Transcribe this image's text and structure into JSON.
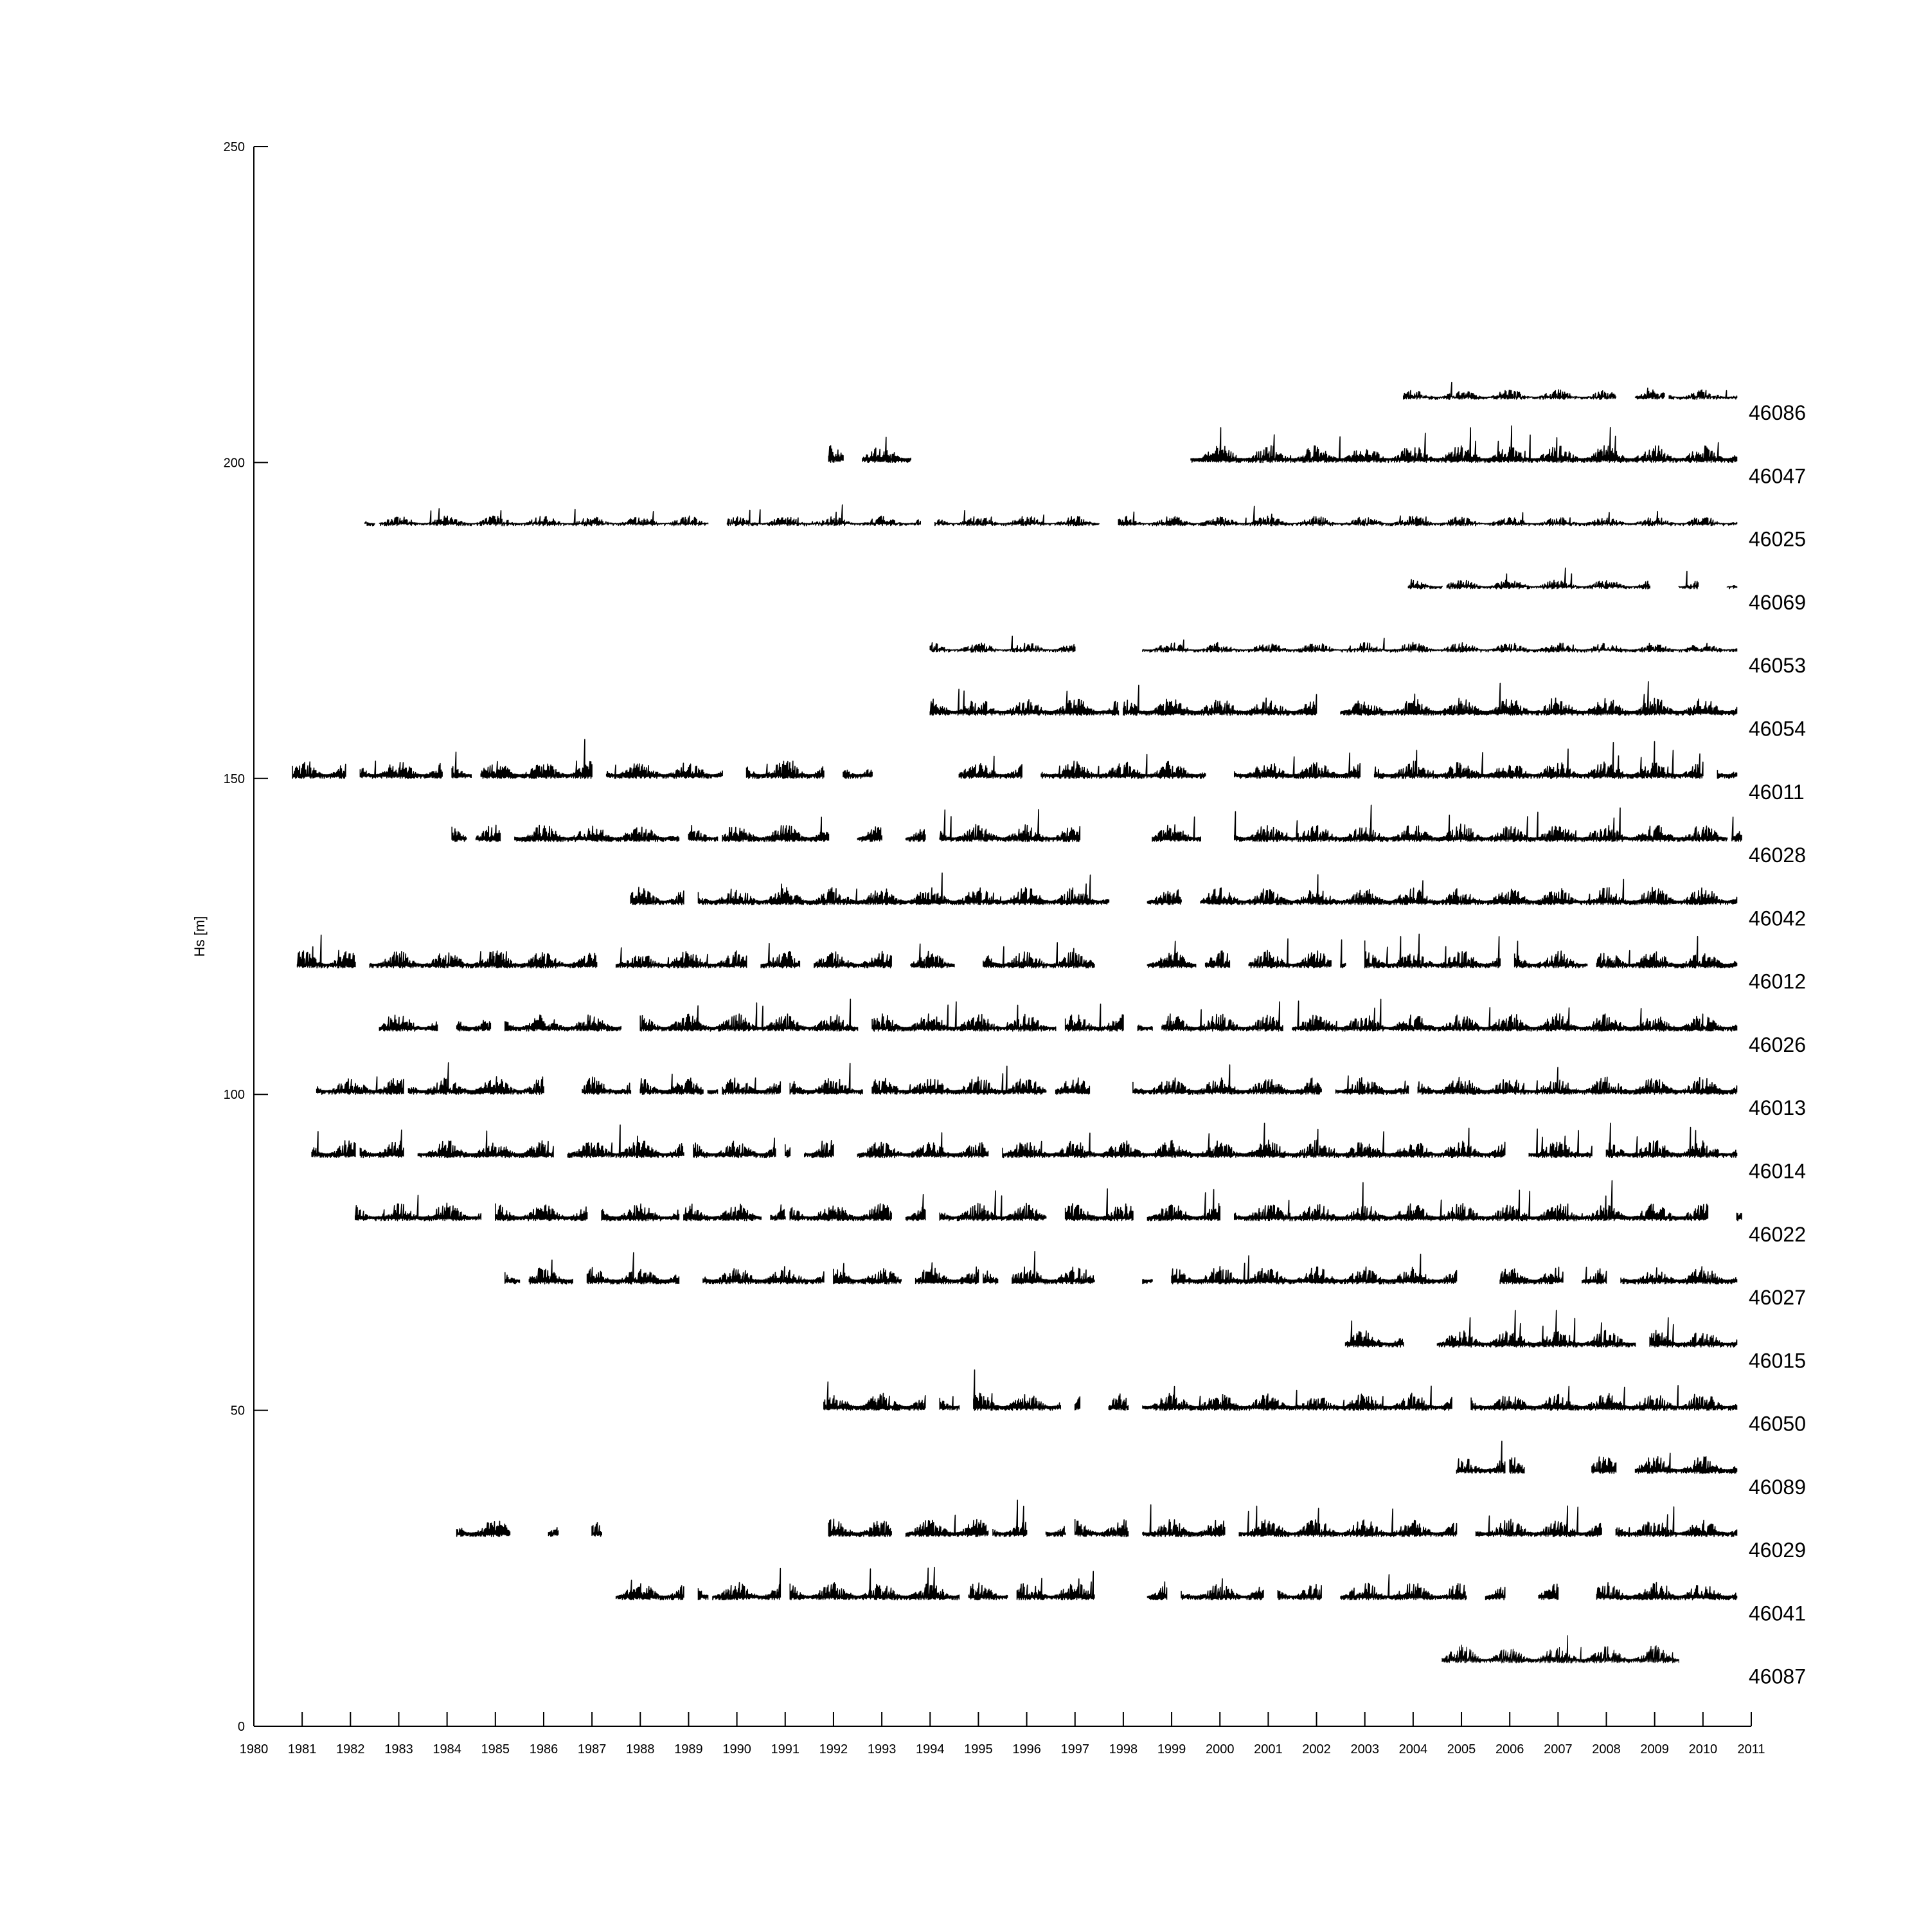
{
  "chart_data": {
    "type": "line",
    "title": "",
    "xlabel": "",
    "ylabel": "Hs [m]",
    "xlim": [
      1980,
      2011
    ],
    "ylim": [
      0,
      250
    ],
    "x_ticks": [
      1980,
      1981,
      1982,
      1983,
      1984,
      1985,
      1986,
      1987,
      1988,
      1989,
      1990,
      1991,
      1992,
      1993,
      1994,
      1995,
      1996,
      1997,
      1998,
      1999,
      2000,
      2001,
      2002,
      2003,
      2004,
      2005,
      2006,
      2007,
      2008,
      2009,
      2010,
      2011
    ],
    "y_ticks": [
      0,
      50,
      100,
      150,
      200,
      250
    ],
    "grid": false,
    "legend": "none",
    "line_color": "#000000",
    "notes_series_offset": 10,
    "series": [
      {
        "name": "46087",
        "offset": 10,
        "coverage": [
          [
            2004.6,
            2009.5
          ]
        ]
      },
      {
        "name": "46041",
        "offset": 20,
        "coverage": [
          [
            1987.5,
            1988.9
          ],
          [
            1989.2,
            1989.4
          ],
          [
            1989.5,
            1990.9
          ],
          [
            1991.1,
            1994.6
          ],
          [
            1994.8,
            1995.6
          ],
          [
            1995.8,
            1997.4
          ],
          [
            1998.5,
            1998.9
          ],
          [
            1999.2,
            2000.9
          ],
          [
            2001.2,
            2002.1
          ],
          [
            2002.5,
            2005.1
          ],
          [
            2005.5,
            2005.9
          ],
          [
            2006.6,
            2007.0
          ],
          [
            2007.8,
            2010.7
          ]
        ]
      },
      {
        "name": "46029",
        "offset": 30,
        "coverage": [
          [
            1984.2,
            1985.3
          ],
          [
            1986.1,
            1986.3
          ],
          [
            1987.0,
            1987.2
          ],
          [
            1991.9,
            1993.2
          ],
          [
            1993.5,
            1995.2
          ],
          [
            1995.3,
            1996.0
          ],
          [
            1996.4,
            1996.8
          ],
          [
            1997.0,
            1998.1
          ],
          [
            1998.4,
            2000.1
          ],
          [
            2000.4,
            2004.9
          ],
          [
            2005.3,
            2007.9
          ],
          [
            2008.2,
            2010.7
          ]
        ]
      },
      {
        "name": "46089",
        "offset": 40,
        "coverage": [
          [
            2004.9,
            2005.9
          ],
          [
            2006.0,
            2006.3
          ],
          [
            2007.7,
            2008.2
          ],
          [
            2008.6,
            2010.7
          ]
        ]
      },
      {
        "name": "46050",
        "offset": 50,
        "coverage": [
          [
            1991.8,
            1993.9
          ],
          [
            1994.2,
            1994.6
          ],
          [
            1994.9,
            1996.7
          ],
          [
            1997.0,
            1997.1
          ],
          [
            1997.7,
            1998.1
          ],
          [
            1998.4,
            2004.8
          ],
          [
            2005.2,
            2010.7
          ]
        ]
      },
      {
        "name": "46015",
        "offset": 60,
        "coverage": [
          [
            2002.6,
            2003.8
          ],
          [
            2004.5,
            2008.6
          ],
          [
            2008.9,
            2010.7
          ]
        ]
      },
      {
        "name": "46027",
        "offset": 70,
        "coverage": [
          [
            1985.2,
            1985.5
          ],
          [
            1985.7,
            1986.6
          ],
          [
            1986.9,
            1988.8
          ],
          [
            1989.3,
            1991.8
          ],
          [
            1992.0,
            1993.4
          ],
          [
            1993.7,
            1995.0
          ],
          [
            1995.1,
            1995.4
          ],
          [
            1995.7,
            1997.4
          ],
          [
            1998.4,
            1998.6
          ],
          [
            1999.0,
            2004.9
          ],
          [
            2005.8,
            2007.1
          ],
          [
            2007.5,
            2008.0
          ],
          [
            2008.3,
            2010.7
          ]
        ]
      },
      {
        "name": "46022",
        "offset": 80,
        "coverage": [
          [
            1982.1,
            1984.7
          ],
          [
            1985.0,
            1986.9
          ],
          [
            1987.2,
            1988.8
          ],
          [
            1988.9,
            1990.5
          ],
          [
            1990.7,
            1991.0
          ],
          [
            1991.1,
            1993.2
          ],
          [
            1993.5,
            1993.9
          ],
          [
            1994.2,
            1996.4
          ],
          [
            1996.8,
            1998.2
          ],
          [
            1998.5,
            2000.0
          ],
          [
            2000.3,
            2010.1
          ],
          [
            2010.7,
            2010.8
          ]
        ]
      },
      {
        "name": "46014",
        "offset": 90,
        "coverage": [
          [
            1981.2,
            1982.1
          ],
          [
            1982.2,
            1983.1
          ],
          [
            1983.4,
            1986.2
          ],
          [
            1986.5,
            1988.9
          ],
          [
            1989.1,
            1990.8
          ],
          [
            1991.0,
            1991.1
          ],
          [
            1991.4,
            1992.0
          ],
          [
            1992.5,
            1995.2
          ],
          [
            1995.5,
            2005.9
          ],
          [
            2006.4,
            2007.7
          ],
          [
            2008.0,
            2010.7
          ]
        ]
      },
      {
        "name": "46013",
        "offset": 100,
        "coverage": [
          [
            1981.3,
            1983.1
          ],
          [
            1983.2,
            1986.0
          ],
          [
            1986.8,
            1987.8
          ],
          [
            1988.0,
            1989.3
          ],
          [
            1989.4,
            1989.6
          ],
          [
            1989.7,
            1990.9
          ],
          [
            1991.1,
            1992.6
          ],
          [
            1992.8,
            1996.4
          ],
          [
            1996.6,
            1997.3
          ],
          [
            1998.2,
            2002.1
          ],
          [
            2002.4,
            2003.9
          ],
          [
            2004.1,
            2010.7
          ]
        ]
      },
      {
        "name": "46026",
        "offset": 110,
        "coverage": [
          [
            1982.6,
            1983.8
          ],
          [
            1984.2,
            1984.9
          ],
          [
            1985.2,
            1987.6
          ],
          [
            1988.0,
            1992.5
          ],
          [
            1992.8,
            1996.6
          ],
          [
            1996.8,
            1998.0
          ],
          [
            1998.3,
            1998.6
          ],
          [
            1998.8,
            2001.3
          ],
          [
            2001.5,
            2010.7
          ]
        ]
      },
      {
        "name": "46012",
        "offset": 120,
        "coverage": [
          [
            1980.9,
            1982.1
          ],
          [
            1982.4,
            1987.1
          ],
          [
            1987.5,
            1990.2
          ],
          [
            1990.5,
            1991.3
          ],
          [
            1991.6,
            1993.2
          ],
          [
            1993.6,
            1994.5
          ],
          [
            1995.1,
            1997.4
          ],
          [
            1998.5,
            1999.5
          ],
          [
            1999.7,
            2000.2
          ],
          [
            2000.6,
            2002.3
          ],
          [
            2002.5,
            2002.6
          ],
          [
            2003.0,
            2005.8
          ],
          [
            2006.1,
            2007.6
          ],
          [
            2007.8,
            2010.7
          ]
        ]
      },
      {
        "name": "46042",
        "offset": 130,
        "coverage": [
          [
            1987.8,
            1988.9
          ],
          [
            1989.2,
            1997.7
          ],
          [
            1998.5,
            1999.2
          ],
          [
            1999.6,
            2010.7
          ]
        ]
      },
      {
        "name": "46028",
        "offset": 140,
        "coverage": [
          [
            1984.1,
            1984.4
          ],
          [
            1984.6,
            1985.1
          ],
          [
            1985.4,
            1988.8
          ],
          [
            1989.0,
            1989.6
          ],
          [
            1989.7,
            1991.9
          ],
          [
            1992.5,
            1993.0
          ],
          [
            1993.5,
            1993.9
          ],
          [
            1994.2,
            1997.1
          ],
          [
            1998.6,
            1999.6
          ],
          [
            2000.3,
            2010.5
          ],
          [
            2010.6,
            2010.8
          ]
        ]
      },
      {
        "name": "46011",
        "offset": 150,
        "coverage": [
          [
            1980.8,
            1981.9
          ],
          [
            1982.2,
            1983.9
          ],
          [
            1984.1,
            1984.5
          ],
          [
            1984.7,
            1987.0
          ],
          [
            1987.3,
            1989.7
          ],
          [
            1990.2,
            1991.8
          ],
          [
            1992.2,
            1992.8
          ],
          [
            1994.6,
            1995.9
          ],
          [
            1996.3,
            1999.7
          ],
          [
            2000.3,
            2002.9
          ],
          [
            2003.2,
            2010.0
          ],
          [
            2010.3,
            2010.7
          ]
        ]
      },
      {
        "name": "46054",
        "offset": 160,
        "coverage": [
          [
            1994.0,
            1997.9
          ],
          [
            1998.0,
            2002.0
          ],
          [
            2002.5,
            2010.7
          ]
        ]
      },
      {
        "name": "46053",
        "offset": 170,
        "coverage": [
          [
            1994.0,
            1997.0
          ],
          [
            1998.4,
            2010.7
          ]
        ]
      },
      {
        "name": "46069",
        "offset": 180,
        "coverage": [
          [
            2003.9,
            2004.6
          ],
          [
            2004.7,
            2008.9
          ],
          [
            2009.5,
            2009.9
          ],
          [
            2010.5,
            2010.7
          ]
        ]
      },
      {
        "name": "46025",
        "offset": 190,
        "coverage": [
          [
            1982.3,
            1982.5
          ],
          [
            1982.6,
            1989.4
          ],
          [
            1989.8,
            1993.8
          ],
          [
            1994.1,
            1997.5
          ],
          [
            1997.9,
            2010.7
          ]
        ]
      },
      {
        "name": "46047",
        "offset": 200,
        "coverage": [
          [
            1991.9,
            1992.2
          ],
          [
            1992.6,
            1993.6
          ],
          [
            1999.4,
            2010.7
          ]
        ]
      },
      {
        "name": "46086",
        "offset": 210,
        "coverage": [
          [
            2003.8,
            2008.2
          ],
          [
            2008.6,
            2009.2
          ],
          [
            2009.3,
            2010.7
          ]
        ]
      }
    ]
  }
}
